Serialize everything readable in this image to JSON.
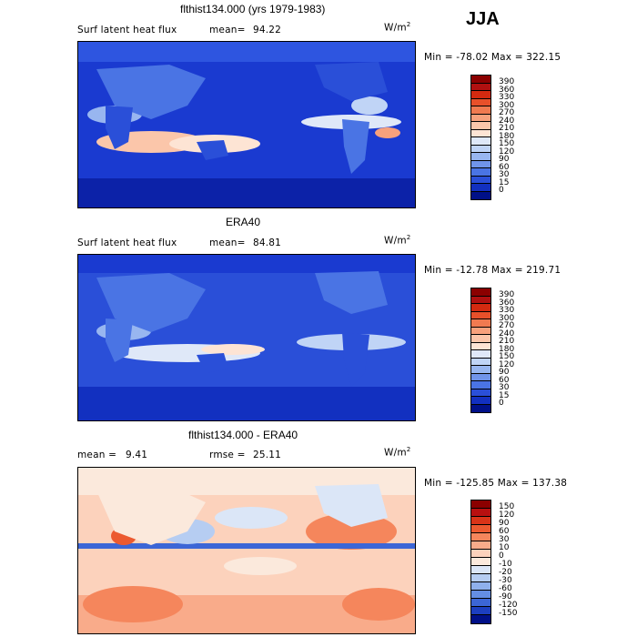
{
  "season": "JJA",
  "panels": [
    {
      "title": "flthist134.000 (yrs 1979-1983)",
      "left_label": "Surf latent heat flux",
      "stat_label": "mean=",
      "stat_value": "94.22",
      "stat2_label": "",
      "stat2_value": "",
      "units": "W/m",
      "units_exp": "2",
      "minmax": "Min = -78.02 Max = 322.15",
      "colorbar": {
        "labels": [
          "390",
          "360",
          "330",
          "300",
          "270",
          "240",
          "210",
          "180",
          "150",
          "120",
          "90",
          "60",
          "30",
          "15",
          "0"
        ],
        "colors": [
          "#8b0000",
          "#b01010",
          "#d42a10",
          "#e8502a",
          "#f07a50",
          "#f7a17c",
          "#fbc6aa",
          "#fde4d4",
          "#dfe8f8",
          "#c0d4f6",
          "#98b6f0",
          "#7094ea",
          "#4a74e4",
          "#2a4fd8",
          "#1230c0",
          "#001088"
        ]
      }
    },
    {
      "title": "ERA40",
      "left_label": "Surf latent heat flux",
      "stat_label": "mean=",
      "stat_value": "84.81",
      "stat2_label": "",
      "stat2_value": "",
      "units": "W/m",
      "units_exp": "2",
      "minmax": "Min = -12.78 Max = 219.71",
      "colorbar": {
        "labels": [
          "390",
          "360",
          "330",
          "300",
          "270",
          "240",
          "210",
          "180",
          "150",
          "120",
          "90",
          "60",
          "30",
          "15",
          "0"
        ],
        "colors": [
          "#8b0000",
          "#b01010",
          "#d42a10",
          "#e8502a",
          "#f07a50",
          "#f7a17c",
          "#fbc6aa",
          "#fde4d4",
          "#dfe8f8",
          "#c0d4f6",
          "#98b6f0",
          "#7094ea",
          "#4a74e4",
          "#2a4fd8",
          "#1230c0",
          "#001088"
        ]
      }
    },
    {
      "title": "flthist134.000 - ERA40",
      "left_label": "",
      "stat_label": "mean =",
      "stat_value": "9.41",
      "stat2_label": "rmse =",
      "stat2_value": "25.11",
      "units": "W/m",
      "units_exp": "2",
      "minmax": "Min = -125.85 Max = 137.38",
      "colorbar": {
        "labels": [
          "150",
          "120",
          "90",
          "60",
          "30",
          "10",
          "0",
          "-10",
          "-20",
          "-30",
          "-60",
          "-90",
          "-120",
          "-150"
        ],
        "colors": [
          "#8b0000",
          "#b81010",
          "#d93418",
          "#ec5a30",
          "#f5865c",
          "#f9ab8a",
          "#fcd2bc",
          "#fbe9dc",
          "#dbe6f7",
          "#b6cdf2",
          "#8fb0ec",
          "#648ee4",
          "#3c66d6",
          "#1c3fc0",
          "#001088"
        ]
      }
    }
  ]
}
